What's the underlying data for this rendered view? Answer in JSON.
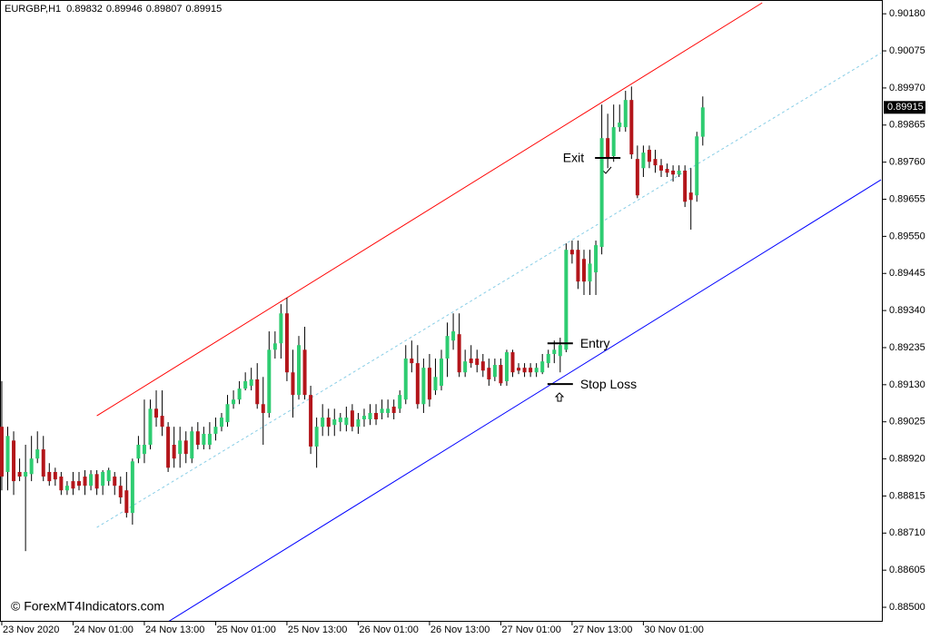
{
  "chart_data": {
    "type": "candlestick",
    "symbol": "EURGBP,H1",
    "up_color": "#2ecc71",
    "down_color": "#b3151a",
    "wick_color": "#000000",
    "xlim": [
      -0.3,
      148.3
    ],
    "xticks": [
      {
        "value": 0,
        "label": "23 Nov 2020"
      },
      {
        "value": 12,
        "label": "24 Nov 01:00"
      },
      {
        "value": 24,
        "label": "24 Nov 13:00"
      },
      {
        "value": 36,
        "label": "25 Nov 01:00"
      },
      {
        "value": 48,
        "label": "25 Nov 13:00"
      },
      {
        "value": 60,
        "label": "26 Nov 01:00"
      },
      {
        "value": 72,
        "label": "26 Nov 13:00"
      },
      {
        "value": 84,
        "label": "27 Nov 01:00"
      },
      {
        "value": 96,
        "label": "27 Nov 13:00"
      },
      {
        "value": 108,
        "label": "30 Nov 01:00"
      }
    ],
    "ylim": [
      0.88459,
      0.90219
    ],
    "yticks": [
      {
        "value": 0.9018,
        "label": "0.90180"
      },
      0.90075,
      {
        "value": 0.8997,
        "label": "0.89970"
      },
      0.89865,
      {
        "value": 0.8976,
        "label": "0.89760"
      },
      0.89655,
      {
        "value": 0.8955,
        "label": "0.89550"
      },
      0.89445,
      {
        "value": 0.8934,
        "label": "0.89340"
      },
      0.89235,
      {
        "value": 0.8913,
        "label": "0.89130"
      },
      0.89025,
      {
        "value": 0.8892,
        "label": "0.88920"
      },
      0.88815,
      {
        "value": 0.8871,
        "label": "0.88710"
      },
      0.88605,
      {
        "value": 0.885,
        "label": "0.88500"
      }
    ],
    "open": [
      0.89011,
      0.88883,
      0.88972,
      0.88883,
      0.8887,
      0.88877,
      0.88921,
      0.88947,
      0.88883,
      0.88883,
      0.8887,
      0.88831,
      0.88857,
      0.88857,
      0.8887,
      0.88844,
      0.88877,
      0.88844,
      0.88857,
      0.8887,
      0.88844,
      0.88831,
      0.88767,
      0.88921,
      0.88934,
      0.8896,
      0.89062,
      0.89042,
      0.89011,
      0.8896,
      0.88934,
      0.88972,
      0.88921,
      0.88998,
      0.8896,
      0.8896,
      0.88991,
      0.89011,
      0.89024,
      0.89075,
      0.89088,
      0.89119,
      0.89127,
      0.89145,
      0.89075,
      0.8905,
      0.89229,
      0.89247,
      0.89332,
      0.89165,
      0.89101,
      0.89229,
      0.89101,
      0.88955,
      0.89011,
      0.89037,
      0.89016,
      0.89024,
      0.89016,
      0.89057,
      0.89011,
      0.89032,
      0.89032,
      0.8905,
      0.8905,
      0.8905,
      0.89068,
      0.89062,
      0.89088,
      0.89204,
      0.89191,
      0.89075,
      0.89178,
      0.89114,
      0.89127,
      0.89204,
      0.89255,
      0.89273,
      0.89165,
      0.89204,
      0.89204,
      0.89196,
      0.89178,
      0.89152,
      0.89186,
      0.8914,
      0.89222,
      0.89178,
      0.89178,
      0.89178,
      0.89165,
      0.89165,
      0.89191,
      0.89217,
      0.89211,
      0.89229,
      0.89512,
      0.89512,
      0.89486,
      0.89422,
      0.89448,
      0.8952,
      0.89828,
      0.89777,
      0.89859,
      0.89859,
      0.89936,
      0.89769,
      0.89743,
      0.89795,
      0.89769,
      0.89751,
      0.89741,
      0.89736,
      0.89725,
      0.89736,
      0.89674,
      0.89666,
      0.89832
    ],
    "high": [
      0.8914,
      0.89011,
      0.88998,
      0.88921,
      0.8896,
      0.88985,
      0.88998,
      0.88985,
      0.88908,
      0.88895,
      0.88883,
      0.88857,
      0.88883,
      0.88883,
      0.88888,
      0.88888,
      0.88888,
      0.88888,
      0.88895,
      0.88883,
      0.8887,
      0.88883,
      0.88921,
      0.88985,
      0.89088,
      0.89088,
      0.89114,
      0.89114,
      0.89024,
      0.89011,
      0.89011,
      0.88998,
      0.89011,
      0.89024,
      0.89011,
      0.89024,
      0.89037,
      0.8905,
      0.89101,
      0.89114,
      0.8914,
      0.89165,
      0.89178,
      0.89191,
      0.89152,
      0.89281,
      0.89281,
      0.89358,
      0.89376,
      0.89229,
      0.89268,
      0.89294,
      0.89127,
      0.89037,
      0.89075,
      0.89062,
      0.89062,
      0.8905,
      0.89068,
      0.89075,
      0.8905,
      0.89062,
      0.89075,
      0.89075,
      0.89088,
      0.89088,
      0.89088,
      0.89114,
      0.89242,
      0.89255,
      0.89242,
      0.89204,
      0.89217,
      0.89204,
      0.89229,
      0.89306,
      0.89332,
      0.89332,
      0.89229,
      0.89242,
      0.89229,
      0.89217,
      0.89204,
      0.89204,
      0.89204,
      0.89229,
      0.89229,
      0.89191,
      0.89191,
      0.89191,
      0.89191,
      0.89217,
      0.89229,
      0.89255,
      0.89263,
      0.8953,
      0.89538,
      0.89538,
      0.89512,
      0.89512,
      0.89538,
      0.89923,
      0.89897,
      0.89923,
      0.89923,
      0.89962,
      0.89974,
      0.89807,
      0.89807,
      0.89807,
      0.89795,
      0.89769,
      0.89756,
      0.89751,
      0.89751,
      0.89751,
      0.89743,
      0.89846,
      0.89946
    ],
    "low": [
      0.88831,
      0.88831,
      0.88818,
      0.88857,
      0.88659,
      0.88857,
      0.88908,
      0.88857,
      0.88844,
      0.88844,
      0.88818,
      0.88818,
      0.88818,
      0.88831,
      0.88818,
      0.88831,
      0.88818,
      0.88818,
      0.88844,
      0.88818,
      0.88793,
      0.88754,
      0.88734,
      0.88908,
      0.88908,
      0.88947,
      0.89011,
      0.88985,
      0.88883,
      0.88895,
      0.88895,
      0.88908,
      0.88908,
      0.88947,
      0.88947,
      0.88947,
      0.88972,
      0.88998,
      0.89011,
      0.89062,
      0.89075,
      0.89114,
      0.89114,
      0.89062,
      0.8896,
      0.89037,
      0.89204,
      0.89204,
      0.8914,
      0.89037,
      0.89088,
      0.89088,
      0.88934,
      0.88895,
      0.88985,
      0.88985,
      0.88985,
      0.88998,
      0.88998,
      0.88998,
      0.88991,
      0.89011,
      0.89016,
      0.89016,
      0.89032,
      0.89037,
      0.89032,
      0.8905,
      0.89075,
      0.89165,
      0.89062,
      0.8905,
      0.89068,
      0.89101,
      0.89114,
      0.89152,
      0.89229,
      0.89152,
      0.89152,
      0.89178,
      0.89165,
      0.89152,
      0.89127,
      0.8914,
      0.89127,
      0.89127,
      0.89152,
      0.8916,
      0.89152,
      0.89152,
      0.89152,
      0.8916,
      0.89178,
      0.89191,
      0.89165,
      0.89222,
      0.89473,
      0.89401,
      0.89384,
      0.89384,
      0.89384,
      0.89499,
      0.89743,
      0.89761,
      0.89846,
      0.89846,
      0.89769,
      0.89658,
      0.89718,
      0.89743,
      0.8973,
      0.89718,
      0.89718,
      0.89705,
      0.89718,
      0.89633,
      0.89569,
      0.89648,
      0.89807
    ],
    "close": [
      0.8887,
      0.88985,
      0.88857,
      0.8887,
      0.88883,
      0.88921,
      0.88947,
      0.8887,
      0.88857,
      0.88862,
      0.88831,
      0.88844,
      0.88836,
      0.88844,
      0.88844,
      0.88877,
      0.88836,
      0.88883,
      0.88888,
      0.88844,
      0.88811,
      0.88767,
      0.88913,
      0.8896,
      0.8896,
      0.89062,
      0.89037,
      0.89011,
      0.88895,
      0.88921,
      0.88972,
      0.88934,
      0.88998,
      0.8896,
      0.88991,
      0.88991,
      0.89011,
      0.89037,
      0.89075,
      0.89088,
      0.89119,
      0.8914,
      0.89145,
      0.89075,
      0.8905,
      0.89229,
      0.89247,
      0.89332,
      0.89165,
      0.89101,
      0.89242,
      0.89101,
      0.88955,
      0.89011,
      0.89037,
      0.89011,
      0.89032,
      0.89037,
      0.89037,
      0.89011,
      0.89032,
      0.89042,
      0.8905,
      0.89032,
      0.89062,
      0.89062,
      0.8905,
      0.89101,
      0.89204,
      0.89191,
      0.89075,
      0.89178,
      0.89088,
      0.89152,
      0.89204,
      0.89268,
      0.89281,
      0.89165,
      0.89196,
      0.89191,
      0.89186,
      0.8917,
      0.89145,
      0.89186,
      0.89134,
      0.89222,
      0.89165,
      0.8917,
      0.89165,
      0.89165,
      0.89178,
      0.89196,
      0.89217,
      0.89229,
      0.89242,
      0.89512,
      0.89499,
      0.89422,
      0.89422,
      0.89473,
      0.89525,
      0.89828,
      0.89769,
      0.89859,
      0.89872,
      0.89936,
      0.89782,
      0.89666,
      0.89787,
      0.89761,
      0.89751,
      0.89736,
      0.8973,
      0.89725,
      0.89736,
      0.89648,
      0.89653,
      0.89833,
      0.89915
    ],
    "channel_lines": [
      {
        "color": "#ff0000",
        "dashed": false,
        "x": [
          16,
          128
        ],
        "y": [
          0.89042,
          0.90211
        ]
      },
      {
        "color": "#0000ff",
        "dashed": false,
        "x": [
          28,
          148
        ],
        "y": [
          0.88459,
          0.8971
        ]
      },
      {
        "color": "#87cde6",
        "dashed": true,
        "x": [
          16,
          148
        ],
        "y": [
          0.88726,
          0.90069
        ]
      }
    ],
    "annotations": [
      {
        "text": "Exit",
        "x": 102,
        "y": 0.89772,
        "label_position": "left"
      },
      {
        "text": "Entry",
        "x": 94,
        "y": 0.89247,
        "label_position": "right"
      },
      {
        "text": "Stop Loss",
        "x": 94,
        "y": 0.89132,
        "label_position": "right"
      }
    ],
    "watermark": "© ForexMT4Indicators.com"
  }
}
